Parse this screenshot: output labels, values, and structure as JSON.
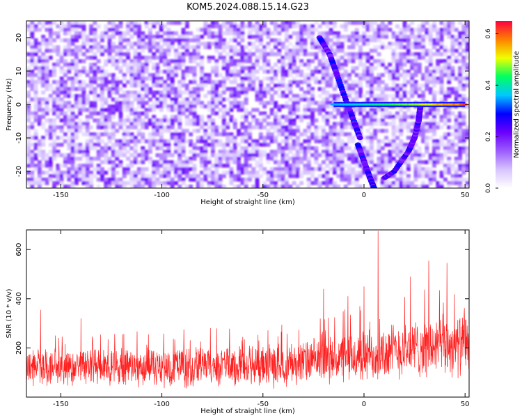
{
  "title": "KOM5.2024.088.15.14.G23",
  "colors": {
    "snr_line": "#ff2020",
    "spectrogram_cmap": [
      "#ffffff",
      "#d8c4ff",
      "#9b5cff",
      "#6a00ff",
      "#0000ff",
      "#00c8ff",
      "#00ff60",
      "#f0ff00",
      "#ff8000",
      "#ff0040"
    ]
  },
  "chart_data": [
    {
      "type": "heatmap",
      "title": "KOM5.2024.088.15.14.G23",
      "xlabel": "Height of straight line (km)",
      "ylabel": "Frequency (Hz)",
      "xlim": [
        -167,
        52
      ],
      "ylim": [
        -25,
        25
      ],
      "x_ticks": [
        -150,
        -100,
        -50,
        0,
        50
      ],
      "y_ticks": [
        -20,
        -10,
        0,
        10,
        20
      ],
      "colorbar": {
        "label": "Normalized spectral amplitude",
        "range": [
          0.0,
          0.65
        ],
        "ticks": [
          0.0,
          0.2,
          0.4,
          0.6
        ]
      },
      "features": {
        "constant_line": {
          "freq": 0,
          "x_start": -15,
          "x_end": 50,
          "amplitude": [
            0.35,
            0.62
          ]
        },
        "upper_branch": {
          "points": [
            [
              -22,
              20
            ],
            [
              -17,
              15
            ],
            [
              -14,
              10
            ],
            [
              -10,
              3
            ],
            [
              -5,
              -5
            ],
            [
              -2,
              -10
            ]
          ]
        },
        "lower_branch_falling": {
          "points": [
            [
              -3,
              -12
            ],
            [
              0,
              -17
            ],
            [
              3,
              -22
            ],
            [
              5,
              -25
            ]
          ]
        },
        "lower_branch_rising": {
          "points": [
            [
              10,
              -22
            ],
            [
              15,
              -20
            ],
            [
              22,
              -14
            ],
            [
              25,
              -10
            ],
            [
              27,
              -5
            ],
            [
              28,
              0
            ]
          ]
        },
        "background_amplitude": [
          0.0,
          0.2
        ]
      }
    },
    {
      "type": "line",
      "xlabel": "Height of straight line (km)",
      "ylabel": "SNR (10 * v/v)",
      "xlim": [
        -167,
        52
      ],
      "ylim": [
        0,
        680
      ],
      "x_ticks": [
        -150,
        -100,
        -50,
        0,
        50
      ],
      "y_ticks": [
        200,
        400,
        600
      ],
      "series": [
        {
          "x_range": [
            -167,
            52
          ],
          "baseline_mean": [
            [
              -167,
              120
            ],
            [
              -50,
              125
            ],
            [
              -20,
              150
            ],
            [
              0,
              165
            ],
            [
              20,
              195
            ],
            [
              52,
              215
            ]
          ],
          "noise_amplitude": [
            [
              -167,
              70
            ],
            [
              -20,
              85
            ],
            [
              0,
              105
            ],
            [
              52,
              120
            ]
          ],
          "peaks": [
            [
              -160,
              355
            ],
            [
              -140,
              320
            ],
            [
              -20,
              440
            ],
            [
              -8,
              410
            ],
            [
              0,
              450
            ],
            [
              7,
              675
            ],
            [
              23,
              490
            ],
            [
              32,
              555
            ],
            [
              41,
              545
            ]
          ]
        }
      ]
    }
  ]
}
